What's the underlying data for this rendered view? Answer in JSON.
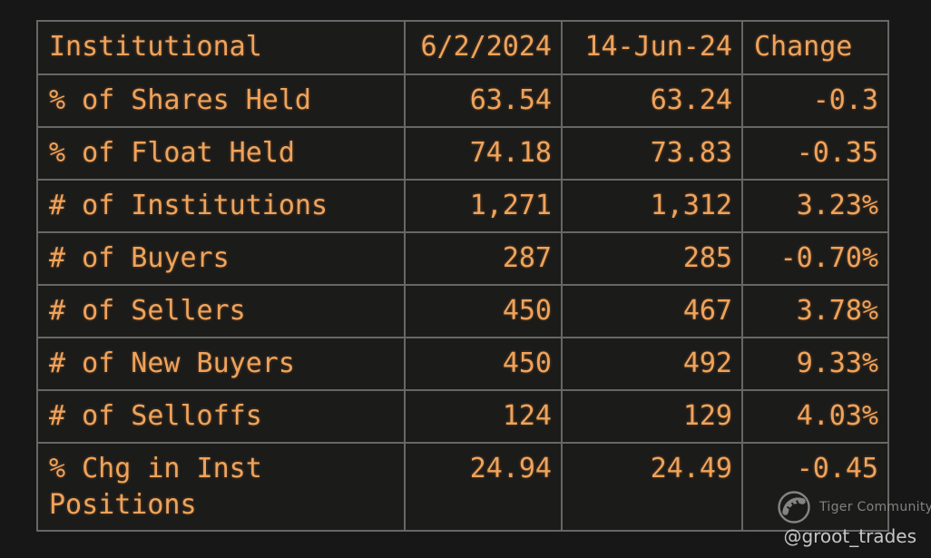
{
  "chart_data": {
    "type": "table",
    "title": "Institutional",
    "columns": [
      "Institutional",
      "6/2/2024",
      "14-Jun-24",
      "Change"
    ],
    "rows": [
      [
        "% of Shares Held",
        "63.54",
        "63.24",
        "-0.3"
      ],
      [
        "% of Float Held",
        "74.18",
        "73.83",
        "-0.35"
      ],
      [
        "# of Institutions",
        "1,271",
        "1,312",
        "3.23%"
      ],
      [
        "# of Buyers",
        "287",
        "285",
        "-0.70%"
      ],
      [
        "# of Sellers",
        "450",
        "467",
        "3.78%"
      ],
      [
        "# of New Buyers",
        "450",
        "492",
        "9.33%"
      ],
      [
        "# of Selloffs",
        "124",
        "129",
        "4.03%"
      ],
      [
        "% Chg in Inst Positions",
        "24.94",
        "24.49",
        "-0.45"
      ]
    ],
    "layout_hints": {
      "grid": true,
      "label_column_align": "left",
      "value_columns_align": "right",
      "change_header_align": "left"
    }
  },
  "watermark": {
    "community_label": "Tiger Community",
    "handle": "@groot_trades",
    "logo_icon": "tiger-community-logo-icon"
  },
  "colors": {
    "page_background": "#171717",
    "cell_background": "#1b1b1a",
    "grid_border": "#676767",
    "text_orange": "#efa35c",
    "watermark_gray": "#8d8d8d",
    "handle_gray": "#c6c6c6"
  }
}
